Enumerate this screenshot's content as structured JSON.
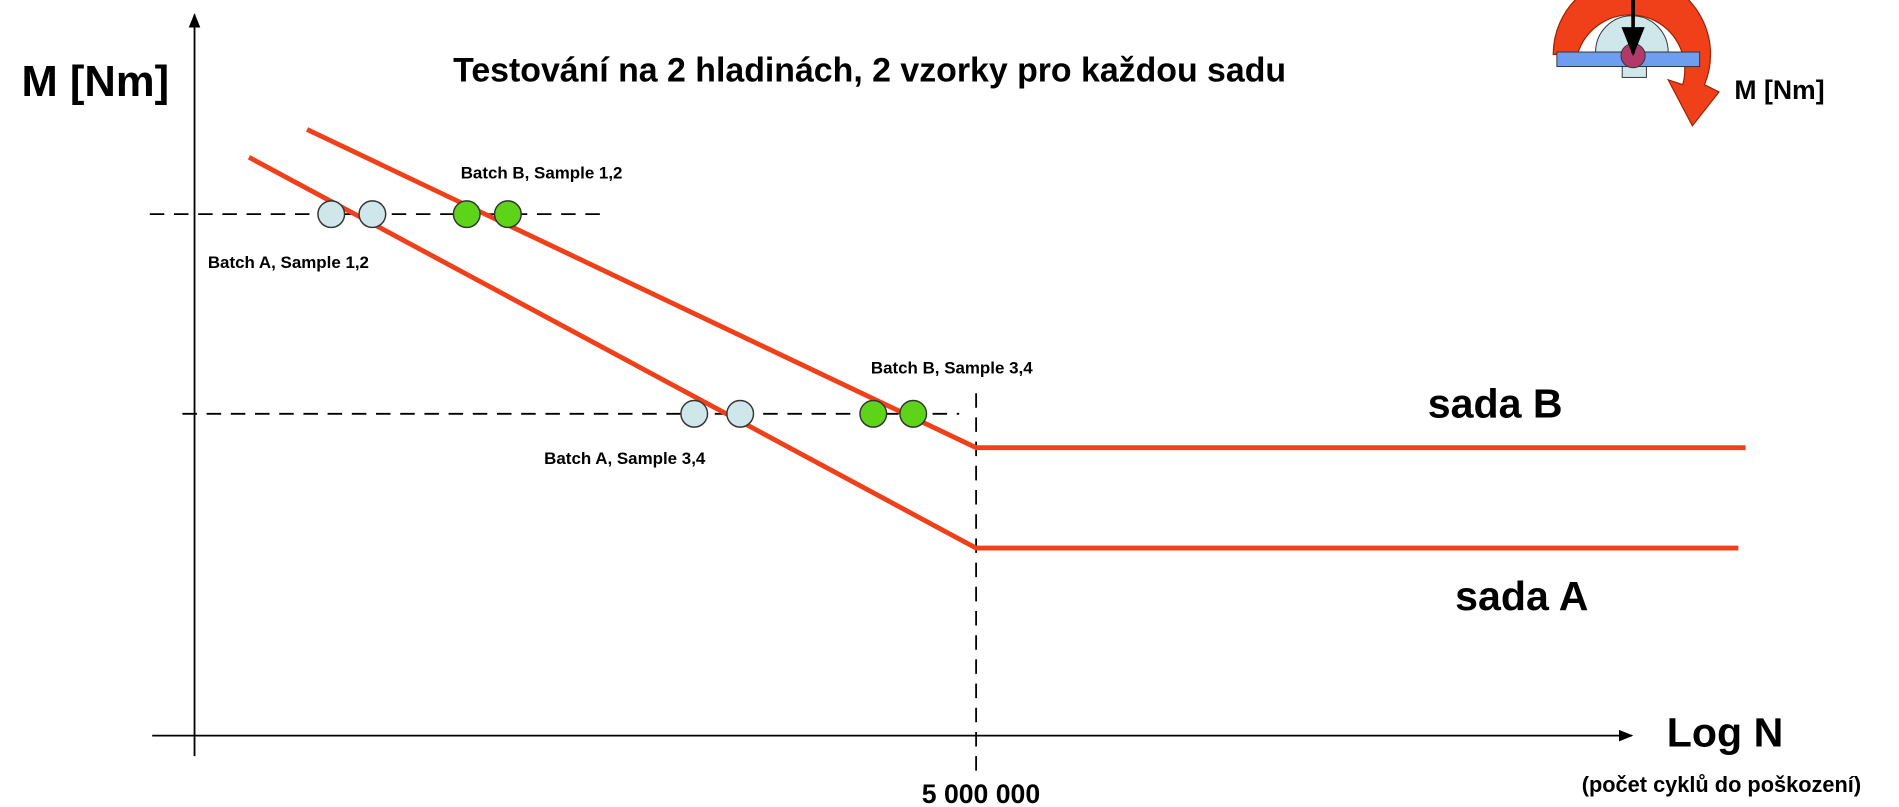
{
  "title": "Testování na 2 hladinách, 2 vzorky pro každou sadu",
  "y_axis_label": "M [Nm]",
  "x_axis_label": "Log N",
  "x_axis_sublabel": "(počet cyklů do poškození)",
  "x_marker_label": "5 000 000",
  "curves": [
    {
      "label": "sada A"
    },
    {
      "label": "sada B"
    }
  ],
  "point_labels": [
    "Batch B, Sample 1,2",
    "Batch A, Sample 1,2",
    "Batch B, Sample 3,4",
    "Batch A, Sample 3,4"
  ],
  "icon_label": "M [Nm]"
}
